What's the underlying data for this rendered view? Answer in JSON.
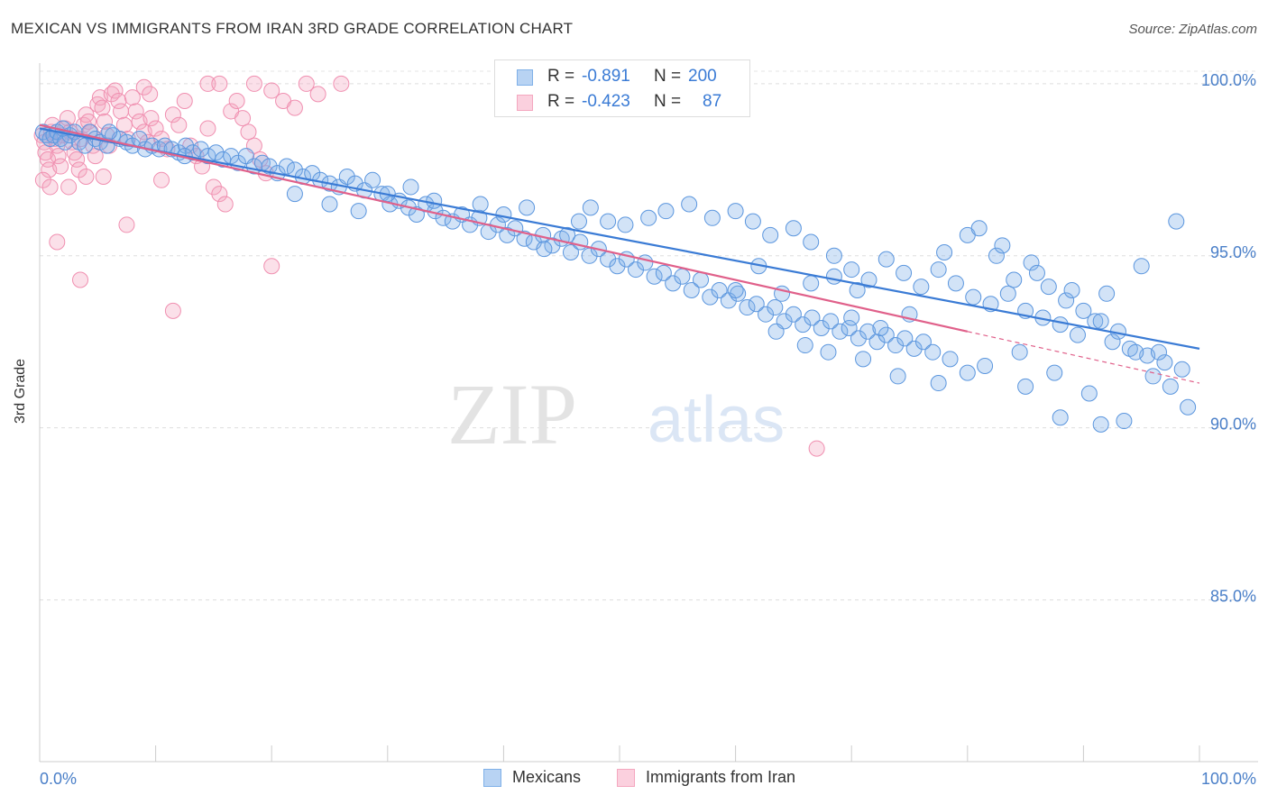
{
  "title": "MEXICAN VS IMMIGRANTS FROM IRAN 3RD GRADE CORRELATION CHART",
  "source": "Source: ZipAtlas.com",
  "watermark": {
    "zip": "ZIP",
    "atlas": "atlas"
  },
  "legend": {
    "rows": [
      {
        "r_label": "R =",
        "r_value": "-0.891",
        "n_label": "N =",
        "n_value": "200",
        "color": "#7fb0e8"
      },
      {
        "r_label": "R =",
        "r_value": "-0.423",
        "n_label": "N =",
        "n_value": "87",
        "color": "#f4a7bf"
      }
    ]
  },
  "bottom_legend": [
    {
      "label": "Mexicans",
      "color": "#7fb0e8"
    },
    {
      "label": "Immigrants from Iran",
      "color": "#f4a7bf"
    }
  ],
  "colors": {
    "blue": "#3a7bd5",
    "pink": "#e0608a",
    "axis_label": "#4a7fc8"
  },
  "chart_data": {
    "type": "scatter",
    "title": "MEXICAN VS IMMIGRANTS FROM IRAN 3RD GRADE CORRELATION CHART",
    "xlabel": "",
    "ylabel": "3rd Grade",
    "xlim": [
      0,
      100
    ],
    "ylim": [
      80.3,
      100.6
    ],
    "x_tick_labels": [
      "0.0%",
      "100.0%"
    ],
    "y_ticks": [
      100,
      95,
      90,
      85
    ],
    "y_tick_labels": [
      "100.0%",
      "95.0%",
      "90.0%",
      "85.0%"
    ],
    "grid": true,
    "legend_position": "top-center",
    "series": [
      {
        "name": "Mexicans",
        "color": "#7fb0e8",
        "trend": {
          "x": [
            0,
            100
          ],
          "y": [
            98.7,
            92.3
          ]
        },
        "points": [
          [
            0.3,
            98.6
          ],
          [
            0.6,
            98.5
          ],
          [
            0.9,
            98.4
          ],
          [
            1.2,
            98.5
          ],
          [
            1.5,
            98.6
          ],
          [
            1.8,
            98.4
          ],
          [
            2.2,
            98.3
          ],
          [
            2.6,
            98.5
          ],
          [
            3.0,
            98.6
          ],
          [
            3.4,
            98.3
          ],
          [
            3.9,
            98.2
          ],
          [
            4.3,
            98.6
          ],
          [
            4.8,
            98.4
          ],
          [
            5.2,
            98.3
          ],
          [
            5.8,
            98.2
          ],
          [
            6.3,
            98.5
          ],
          [
            6.9,
            98.4
          ],
          [
            7.5,
            98.3
          ],
          [
            8.0,
            98.2
          ],
          [
            8.6,
            98.4
          ],
          [
            9.1,
            98.1
          ],
          [
            9.7,
            98.2
          ],
          [
            10.3,
            98.1
          ],
          [
            10.8,
            98.2
          ],
          [
            11.4,
            98.1
          ],
          [
            12.0,
            98.0
          ],
          [
            12.6,
            98.2
          ],
          [
            13.2,
            98.0
          ],
          [
            13.9,
            98.1
          ],
          [
            14.5,
            97.9
          ],
          [
            15.2,
            98.0
          ],
          [
            15.8,
            97.8
          ],
          [
            16.5,
            97.9
          ],
          [
            17.1,
            97.7
          ],
          [
            17.8,
            97.9
          ],
          [
            18.5,
            97.6
          ],
          [
            19.2,
            97.7
          ],
          [
            19.8,
            97.6
          ],
          [
            20.5,
            97.4
          ],
          [
            21.3,
            97.6
          ],
          [
            22.0,
            97.5
          ],
          [
            22.7,
            97.3
          ],
          [
            23.5,
            97.4
          ],
          [
            24.2,
            97.2
          ],
          [
            25.0,
            97.1
          ],
          [
            25.8,
            97.0
          ],
          [
            26.5,
            97.3
          ],
          [
            27.2,
            97.1
          ],
          [
            28.0,
            96.9
          ],
          [
            28.7,
            97.2
          ],
          [
            29.5,
            96.8
          ],
          [
            30.2,
            96.5
          ],
          [
            31.0,
            96.6
          ],
          [
            31.8,
            96.4
          ],
          [
            32.5,
            96.2
          ],
          [
            33.3,
            96.5
          ],
          [
            34.1,
            96.3
          ],
          [
            34.8,
            96.1
          ],
          [
            35.6,
            96.0
          ],
          [
            36.4,
            96.2
          ],
          [
            37.1,
            95.9
          ],
          [
            37.9,
            96.1
          ],
          [
            38.7,
            95.7
          ],
          [
            39.5,
            95.9
          ],
          [
            40.3,
            95.6
          ],
          [
            41.0,
            95.8
          ],
          [
            41.8,
            95.5
          ],
          [
            42.6,
            95.4
          ],
          [
            43.4,
            95.6
          ],
          [
            44.2,
            95.3
          ],
          [
            45.0,
            95.5
          ],
          [
            45.8,
            95.1
          ],
          [
            46.6,
            95.4
          ],
          [
            47.4,
            95.0
          ],
          [
            48.2,
            95.2
          ],
          [
            49.0,
            94.9
          ],
          [
            49.8,
            94.7
          ],
          [
            50.6,
            94.9
          ],
          [
            51.4,
            94.6
          ],
          [
            52.2,
            94.8
          ],
          [
            53.0,
            94.4
          ],
          [
            53.8,
            94.5
          ],
          [
            54.6,
            94.2
          ],
          [
            55.4,
            94.4
          ],
          [
            56.2,
            94.0
          ],
          [
            57.0,
            94.3
          ],
          [
            57.8,
            93.8
          ],
          [
            58.6,
            94.0
          ],
          [
            59.4,
            93.7
          ],
          [
            60.2,
            93.9
          ],
          [
            61.0,
            93.5
          ],
          [
            61.8,
            93.6
          ],
          [
            62.6,
            93.3
          ],
          [
            63.4,
            93.5
          ],
          [
            64.2,
            93.1
          ],
          [
            65.0,
            93.3
          ],
          [
            65.8,
            93.0
          ],
          [
            66.6,
            93.2
          ],
          [
            67.4,
            92.9
          ],
          [
            68.2,
            93.1
          ],
          [
            69.0,
            92.8
          ],
          [
            69.8,
            92.9
          ],
          [
            70.6,
            92.6
          ],
          [
            71.4,
            92.8
          ],
          [
            72.2,
            92.5
          ],
          [
            73.0,
            92.7
          ],
          [
            73.8,
            92.4
          ],
          [
            74.6,
            92.6
          ],
          [
            75.4,
            92.3
          ],
          [
            76.2,
            92.5
          ],
          [
            77.0,
            92.2
          ],
          [
            2.0,
            98.7
          ],
          [
            6.0,
            98.6
          ],
          [
            12.5,
            97.9
          ],
          [
            22.0,
            96.8
          ],
          [
            25.0,
            96.5
          ],
          [
            27.5,
            96.3
          ],
          [
            30.0,
            96.8
          ],
          [
            32.0,
            97.0
          ],
          [
            34.0,
            96.6
          ],
          [
            38.0,
            96.5
          ],
          [
            40.0,
            96.2
          ],
          [
            42.0,
            96.4
          ],
          [
            43.5,
            95.2
          ],
          [
            45.5,
            95.6
          ],
          [
            46.5,
            96.0
          ],
          [
            47.5,
            96.4
          ],
          [
            49.0,
            96.0
          ],
          [
            50.5,
            95.9
          ],
          [
            52.5,
            96.1
          ],
          [
            54.0,
            96.3
          ],
          [
            56.0,
            96.5
          ],
          [
            58.0,
            96.1
          ],
          [
            60.0,
            96.3
          ],
          [
            61.5,
            96.0
          ],
          [
            63.0,
            95.6
          ],
          [
            65.0,
            95.8
          ],
          [
            66.5,
            95.4
          ],
          [
            68.5,
            95.0
          ],
          [
            70.0,
            94.6
          ],
          [
            71.5,
            94.3
          ],
          [
            73.0,
            94.9
          ],
          [
            74.5,
            94.5
          ],
          [
            76.0,
            94.1
          ],
          [
            77.5,
            94.6
          ],
          [
            79.0,
            94.2
          ],
          [
            80.5,
            93.8
          ],
          [
            82.0,
            93.6
          ],
          [
            83.5,
            93.9
          ],
          [
            85.0,
            93.4
          ],
          [
            86.5,
            93.2
          ],
          [
            88.0,
            93.0
          ],
          [
            89.5,
            92.7
          ],
          [
            91.0,
            93.1
          ],
          [
            92.5,
            92.5
          ],
          [
            94.0,
            92.3
          ],
          [
            95.5,
            92.1
          ],
          [
            97.0,
            91.9
          ],
          [
            98.5,
            91.7
          ],
          [
            78.0,
            95.1
          ],
          [
            80.0,
            95.6
          ],
          [
            82.5,
            95.0
          ],
          [
            84.0,
            94.3
          ],
          [
            85.5,
            94.8
          ],
          [
            87.0,
            94.1
          ],
          [
            88.5,
            93.7
          ],
          [
            90.0,
            93.4
          ],
          [
            91.5,
            93.1
          ],
          [
            93.0,
            92.8
          ],
          [
            94.5,
            92.2
          ],
          [
            96.0,
            91.5
          ],
          [
            97.5,
            91.2
          ],
          [
            99.0,
            90.6
          ],
          [
            81.0,
            95.8
          ],
          [
            83.0,
            95.3
          ],
          [
            86.0,
            94.5
          ],
          [
            89.0,
            94.0
          ],
          [
            92.0,
            93.9
          ],
          [
            95.0,
            94.7
          ],
          [
            98.0,
            96.0
          ],
          [
            70.0,
            93.2
          ],
          [
            72.5,
            92.9
          ],
          [
            75.0,
            93.3
          ],
          [
            78.5,
            92.0
          ],
          [
            81.5,
            91.8
          ],
          [
            84.5,
            92.2
          ],
          [
            87.5,
            91.6
          ],
          [
            90.5,
            91.0
          ],
          [
            93.5,
            90.2
          ],
          [
            96.5,
            92.2
          ],
          [
            63.5,
            92.8
          ],
          [
            66.0,
            92.4
          ],
          [
            68.0,
            92.2
          ],
          [
            71.0,
            92.0
          ],
          [
            74.0,
            91.5
          ],
          [
            77.5,
            91.3
          ],
          [
            80.0,
            91.6
          ],
          [
            85.0,
            91.2
          ],
          [
            88.0,
            90.3
          ],
          [
            91.5,
            90.1
          ],
          [
            60.0,
            94.0
          ],
          [
            62.0,
            94.7
          ],
          [
            64.0,
            93.9
          ],
          [
            66.5,
            94.2
          ],
          [
            68.5,
            94.4
          ],
          [
            70.5,
            94.0
          ]
        ]
      },
      {
        "name": "Immigrants from Iran",
        "color": "#f4a7bf",
        "trend": {
          "x": [
            0,
            80
          ],
          "y": [
            98.8,
            92.8
          ]
        },
        "trend_dashed": {
          "x": [
            80,
            100
          ],
          "y": [
            92.8,
            91.3
          ]
        },
        "points": [
          [
            0.2,
            98.5
          ],
          [
            0.4,
            98.3
          ],
          [
            0.5,
            98.0
          ],
          [
            0.7,
            97.8
          ],
          [
            0.8,
            97.5
          ],
          [
            1.0,
            98.6
          ],
          [
            1.1,
            98.8
          ],
          [
            1.3,
            98.4
          ],
          [
            1.5,
            98.2
          ],
          [
            1.6,
            97.9
          ],
          [
            1.8,
            97.6
          ],
          [
            2.0,
            98.5
          ],
          [
            2.2,
            98.7
          ],
          [
            2.4,
            99.0
          ],
          [
            2.6,
            98.6
          ],
          [
            2.8,
            98.3
          ],
          [
            3.0,
            98.0
          ],
          [
            3.2,
            97.8
          ],
          [
            3.4,
            97.5
          ],
          [
            3.6,
            98.4
          ],
          [
            3.8,
            98.8
          ],
          [
            4.0,
            99.1
          ],
          [
            4.2,
            98.9
          ],
          [
            4.4,
            98.6
          ],
          [
            4.6,
            98.2
          ],
          [
            4.8,
            97.9
          ],
          [
            5.0,
            99.4
          ],
          [
            5.2,
            99.6
          ],
          [
            5.4,
            99.3
          ],
          [
            5.6,
            98.9
          ],
          [
            5.8,
            98.5
          ],
          [
            6.0,
            98.2
          ],
          [
            6.2,
            99.7
          ],
          [
            6.5,
            99.8
          ],
          [
            6.8,
            99.5
          ],
          [
            7.0,
            99.2
          ],
          [
            7.3,
            98.8
          ],
          [
            7.6,
            98.4
          ],
          [
            8.0,
            99.6
          ],
          [
            8.3,
            99.2
          ],
          [
            8.6,
            98.9
          ],
          [
            9.0,
            98.6
          ],
          [
            9.3,
            98.3
          ],
          [
            9.6,
            99.0
          ],
          [
            10.0,
            98.7
          ],
          [
            10.5,
            98.4
          ],
          [
            11.0,
            98.1
          ],
          [
            11.5,
            99.1
          ],
          [
            12.0,
            98.8
          ],
          [
            12.5,
            99.5
          ],
          [
            13.0,
            98.2
          ],
          [
            13.5,
            97.9
          ],
          [
            14.0,
            97.6
          ],
          [
            14.5,
            98.7
          ],
          [
            15.0,
            97.0
          ],
          [
            15.5,
            96.8
          ],
          [
            16.0,
            96.5
          ],
          [
            16.5,
            99.2
          ],
          [
            17.0,
            99.5
          ],
          [
            17.5,
            99.0
          ],
          [
            18.0,
            98.6
          ],
          [
            18.5,
            98.2
          ],
          [
            19.0,
            97.8
          ],
          [
            19.5,
            97.4
          ],
          [
            20.0,
            99.8
          ],
          [
            21.0,
            99.5
          ],
          [
            22.0,
            99.3
          ],
          [
            23.0,
            100.0
          ],
          [
            24.0,
            99.7
          ],
          [
            10.5,
            97.2
          ],
          [
            7.5,
            95.9
          ],
          [
            3.5,
            94.3
          ],
          [
            1.5,
            95.4
          ],
          [
            11.5,
            93.4
          ],
          [
            20.0,
            94.7
          ],
          [
            67.0,
            89.4
          ],
          [
            0.3,
            97.2
          ],
          [
            0.9,
            97.0
          ],
          [
            2.5,
            97.0
          ],
          [
            4.0,
            97.3
          ],
          [
            5.5,
            97.3
          ],
          [
            14.5,
            100.0
          ],
          [
            15.5,
            100.0
          ],
          [
            18.5,
            100.0
          ],
          [
            26.0,
            100.0
          ],
          [
            9.0,
            99.9
          ],
          [
            9.5,
            99.7
          ]
        ]
      }
    ]
  }
}
